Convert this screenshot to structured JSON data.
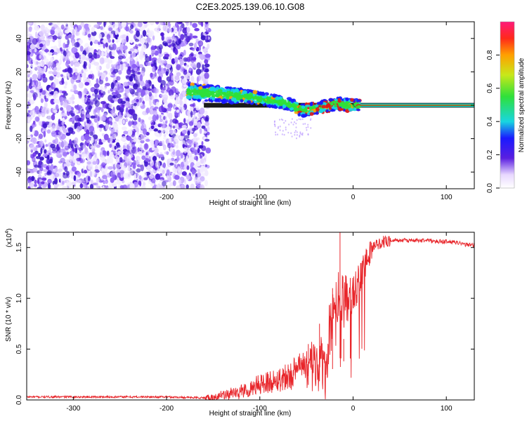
{
  "title": "C2E3.2025.139.06.10.G08",
  "colors": {
    "snr_line": "#e8262b",
    "spectro_bg_purple": "#5a1fe0",
    "ridge_cyan": "#18d6e0",
    "ridge_green": "#2fe03a",
    "ridge_red": "#e01818"
  },
  "chart_data": [
    {
      "type": "heatmap",
      "name": "spectrogram",
      "xlabel": "Height of straight line (km)",
      "ylabel": "Frequency (Hz)",
      "xlim": [
        -350,
        130
      ],
      "ylim": [
        -50,
        50
      ],
      "xticks": [
        -300,
        -200,
        -100,
        0,
        100
      ],
      "xtick_labels": [
        "-300",
        "-200",
        "-100",
        "0",
        "100"
      ],
      "yticks": [
        -40,
        -20,
        0,
        20,
        40
      ],
      "ytick_labels": [
        "-40",
        "-20",
        "0",
        "20",
        "40"
      ],
      "noise_region_x": [
        -350,
        -155
      ],
      "ridge": {
        "x": [
          -175,
          -150,
          -130,
          -110,
          -90,
          -70,
          -55,
          -40,
          -25,
          -15,
          -5,
          5,
          130
        ],
        "y": [
          8,
          7,
          6,
          5,
          3,
          1,
          -3,
          -2,
          0,
          1,
          0,
          0,
          0
        ]
      },
      "colorbar": {
        "label": "Normalized spectral amplitude",
        "ticks": [
          0.0,
          0.2,
          0.4,
          0.6,
          0.8
        ],
        "tick_labels": [
          "0.0",
          "0.2",
          "0.4",
          "0.6",
          "0.8"
        ],
        "range": [
          0,
          1
        ]
      }
    },
    {
      "type": "line",
      "name": "snr",
      "xlabel": "Height of straight line (km)",
      "ylabel": "SNR (10 * v/v)",
      "scale_label": "(x10",
      "scale_exp": "4",
      "scale_close": ")",
      "xlim": [
        -350,
        130
      ],
      "ylim": [
        0,
        1.65
      ],
      "xticks": [
        -300,
        -200,
        -100,
        0,
        100
      ],
      "xtick_labels": [
        "-300",
        "-200",
        "-100",
        "0",
        "100"
      ],
      "yticks": [
        0.0,
        0.5,
        1.0,
        1.5
      ],
      "ytick_labels": [
        "0.0",
        "0.5",
        "1.0",
        "1.5"
      ],
      "series": [
        {
          "name": "SNR",
          "x": [
            -350,
            -300,
            -250,
            -200,
            -160,
            -140,
            -120,
            -110,
            -100,
            -90,
            -80,
            -70,
            -60,
            -55,
            -50,
            -45,
            -40,
            -35,
            -30,
            -25,
            -20,
            -15,
            -10,
            -5,
            0,
            5,
            10,
            15,
            20,
            25,
            30,
            40,
            50,
            60,
            70,
            80,
            90,
            100,
            110,
            120,
            130
          ],
          "y": [
            0.03,
            0.03,
            0.03,
            0.03,
            0.02,
            0.04,
            0.08,
            0.12,
            0.15,
            0.18,
            0.2,
            0.24,
            0.3,
            0.35,
            0.35,
            0.4,
            0.3,
            0.5,
            0.2,
            0.7,
            0.8,
            1.05,
            0.95,
            1.0,
            1.05,
            1.15,
            1.3,
            1.4,
            1.48,
            1.52,
            1.55,
            1.57,
            1.57,
            1.57,
            1.57,
            1.57,
            1.56,
            1.56,
            1.55,
            1.53,
            1.52
          ],
          "spikes": [
            {
              "x": -48,
              "y": 0.55
            },
            {
              "x": -36,
              "y": 0.75
            },
            {
              "x": -22,
              "y": 1.1
            },
            {
              "x": -14,
              "y": 1.65
            },
            {
              "x": -10,
              "y": 0.6
            },
            {
              "x": -3,
              "y": 1.2
            }
          ]
        }
      ]
    }
  ]
}
